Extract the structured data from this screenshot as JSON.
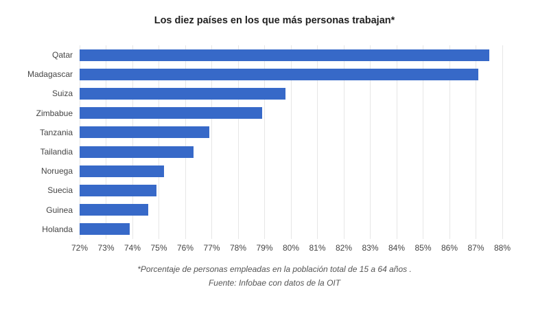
{
  "chart_data": {
    "type": "bar",
    "orientation": "horizontal",
    "title": "Los diez países en los que más personas trabajan*",
    "categories": [
      "Qatar",
      "Madagascar",
      "Suiza",
      "Zimbabue",
      "Tanzania",
      "Tailandia",
      "Noruega",
      "Suecia",
      "Guinea",
      "Holanda"
    ],
    "values": [
      87.5,
      87.1,
      79.8,
      78.9,
      76.9,
      76.3,
      75.2,
      74.9,
      74.6,
      73.9
    ],
    "unit": "%",
    "xlabel": "",
    "ylabel": "",
    "xlim": [
      72,
      88
    ],
    "x_ticks": [
      "72%",
      "73%",
      "74%",
      "75%",
      "76%",
      "77%",
      "78%",
      "79%",
      "80%",
      "81%",
      "82%",
      "83%",
      "84%",
      "85%",
      "86%",
      "87%",
      "88%"
    ],
    "grid": true,
    "legend": "none",
    "footnotes": [
      "*Porcentaje de personas empleadas en la población total de 15 a 64 años .",
      "Fuente: Infobae con datos de la OIT"
    ]
  },
  "colors": {
    "bar": "#3769C8",
    "gridline": "#e6e6e6",
    "axis_text": "#444444",
    "title_text": "#212121",
    "footnote_text": "#555555",
    "background": "#ffffff"
  }
}
